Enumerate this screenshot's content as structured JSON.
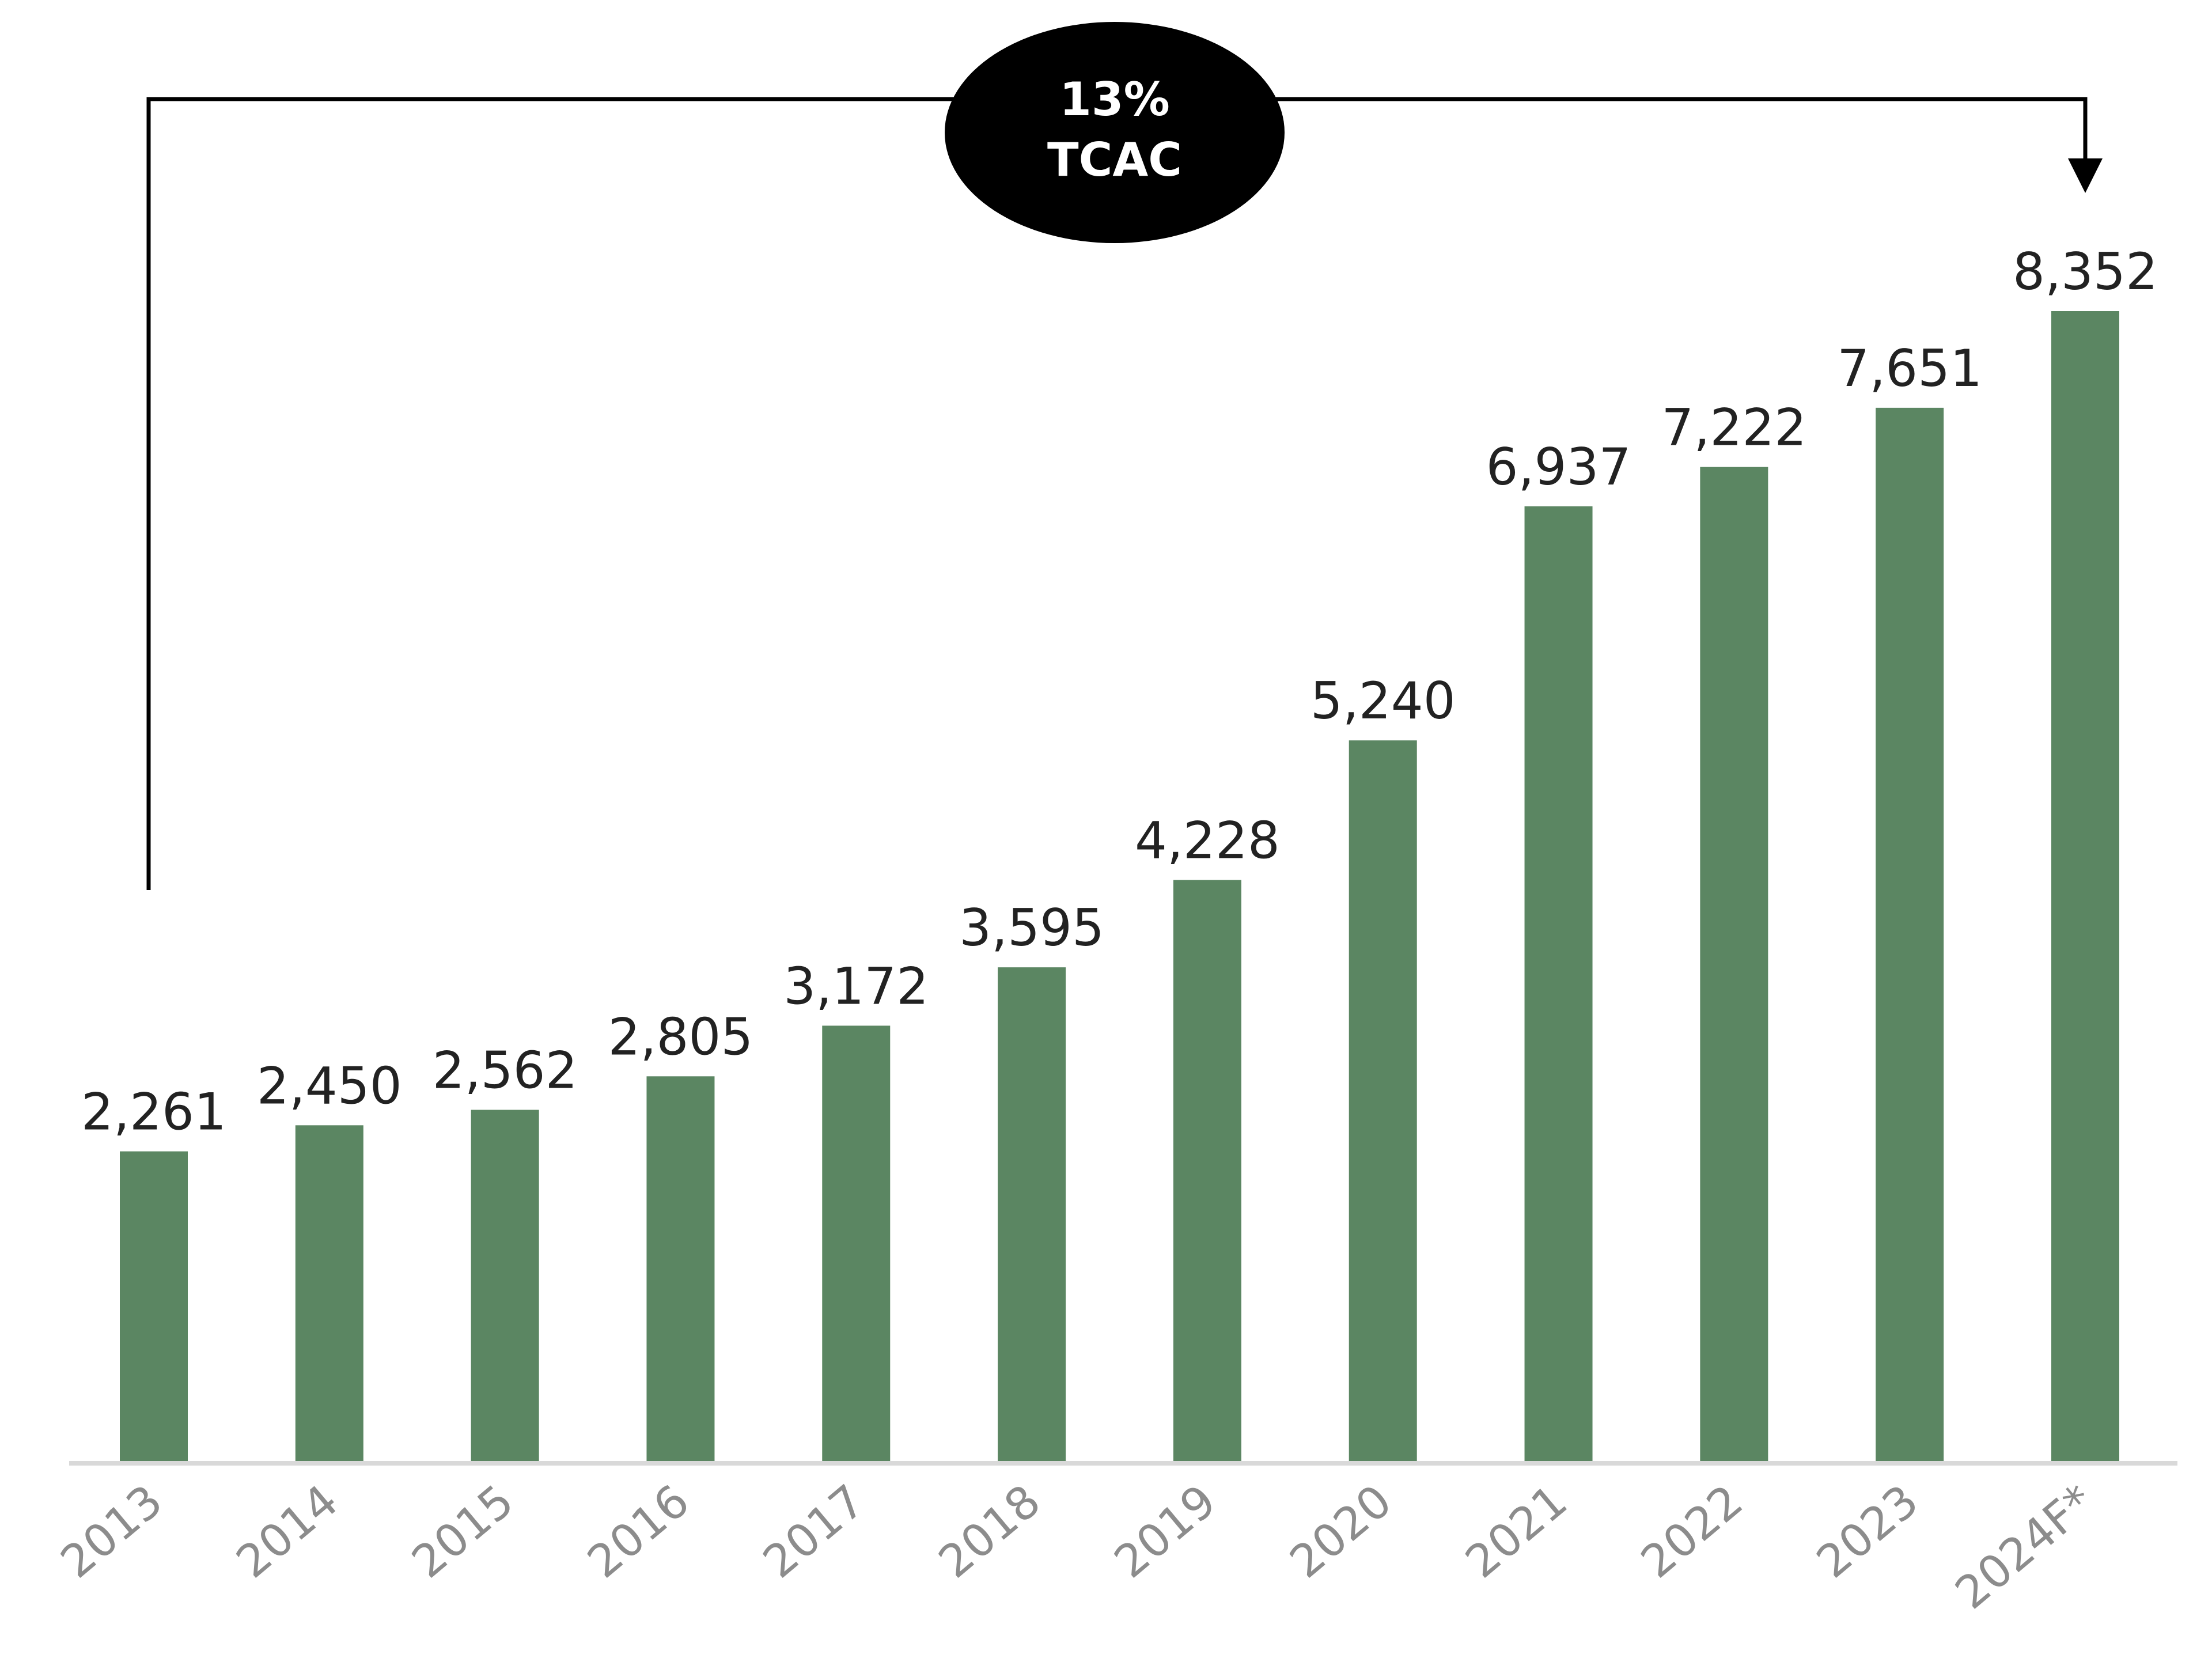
{
  "chart_data": {
    "type": "bar",
    "categories": [
      "2013",
      "2014",
      "2015",
      "2016",
      "2017",
      "2018",
      "2019",
      "2020",
      "2021",
      "2022",
      "2023",
      "2024F*"
    ],
    "values": [
      2261,
      2450,
      2562,
      2805,
      3172,
      3595,
      4228,
      5240,
      6937,
      7222,
      7651,
      8352
    ],
    "value_labels": [
      "2,261",
      "2,450",
      "2,562",
      "2,805",
      "3,172",
      "3,595",
      "4,228",
      "5,240",
      "6,937",
      "7,222",
      "7,651",
      "8,352"
    ],
    "title": "",
    "xlabel": "",
    "ylabel": "",
    "ylim": [
      0,
      8352
    ],
    "grid": false,
    "legend": "none",
    "bar_color": "#5b8662",
    "annotation": {
      "line1": "13%",
      "line2": "TCAC",
      "from": "2013",
      "to": "2024F*"
    }
  },
  "colors": {
    "bar": "#5b8662",
    "axis": "#d9d9d9",
    "badge": "#000000",
    "badge_text": "#ffffff",
    "tick_text": "#8c8c8c",
    "value_text": "#222222"
  }
}
